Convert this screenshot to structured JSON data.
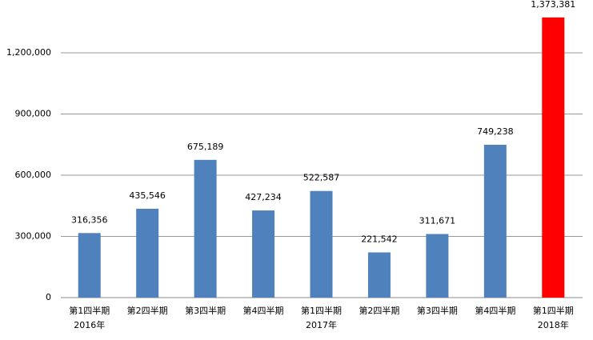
{
  "chart_data": {
    "type": "bar",
    "categories": [
      "第1四半期",
      "第2四半期",
      "第3四半期",
      "第4四半期",
      "第1四半期",
      "第2四半期",
      "第3四半期",
      "第4四半期",
      "第1四半期"
    ],
    "category_groups": [
      "2016年",
      null,
      null,
      null,
      "2017年",
      null,
      null,
      null,
      "2018年"
    ],
    "values": [
      316356,
      435546,
      675189,
      427234,
      522587,
      221542,
      311671,
      749238,
      1373381
    ],
    "value_labels": [
      "316,356",
      "435,546",
      "675,189",
      "427,234",
      "522,587",
      "221,542",
      "311,671",
      "749,238",
      "1,373,381"
    ],
    "colors": [
      "#4f81bd",
      "#4f81bd",
      "#4f81bd",
      "#4f81bd",
      "#4f81bd",
      "#4f81bd",
      "#4f81bd",
      "#4f81bd",
      "#ff0000"
    ],
    "ylim": [
      0,
      1400000
    ],
    "yticks": [
      0,
      {
        "value": 300000,
        "label": "300,000"
      },
      {
        "value": 600000,
        "label": "600,000"
      },
      {
        "value": 900000,
        "label": "900,000"
      },
      {
        "value": 1200000,
        "label": "1,200,000"
      }
    ],
    "grid": true
  }
}
